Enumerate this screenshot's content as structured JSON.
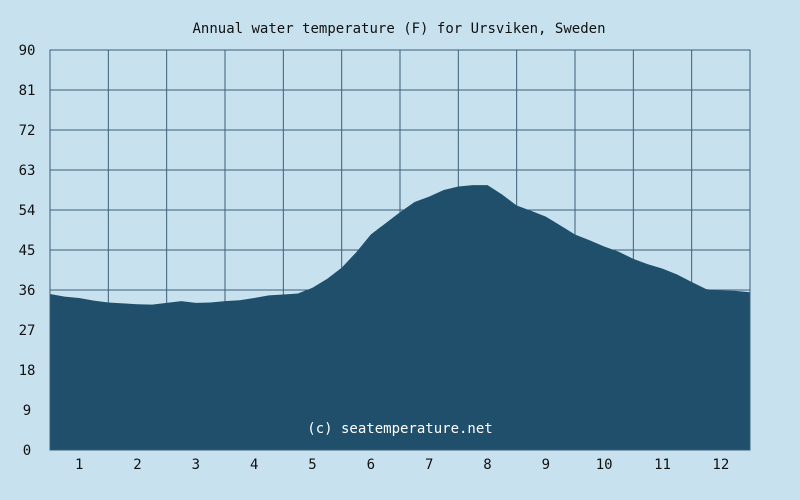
{
  "chart_data": {
    "type": "area",
    "title": "Annual water temperature (F) for Ursviken, Sweden",
    "xlabel": "",
    "ylabel": "",
    "x_tick_labels": [
      "1",
      "2",
      "3",
      "4",
      "5",
      "6",
      "7",
      "8",
      "9",
      "10",
      "11",
      "12"
    ],
    "y_tick_labels": [
      "0",
      "9",
      "18",
      "27",
      "36",
      "45",
      "54",
      "63",
      "72",
      "81",
      "90"
    ],
    "ylim": [
      0,
      90
    ],
    "xlim": [
      0.5,
      12.5
    ],
    "grid": true,
    "legend": "none",
    "watermark": "(c) seatemperature.net",
    "colors": {
      "background": "#c8e1ee",
      "plot_background": "#c8e1ee",
      "fill": "#1f4f6b",
      "grid": "#3a5f78"
    },
    "series": [
      {
        "x": [
          0.5,
          0.75,
          1.0,
          1.25,
          1.5,
          1.75,
          2.0,
          2.25,
          2.5,
          2.75,
          3.0,
          3.25,
          3.5,
          3.75,
          4.0,
          4.25,
          4.5,
          4.75,
          5.0,
          5.25,
          5.5,
          5.75,
          6.0,
          6.25,
          6.5,
          6.75,
          7.0,
          7.25,
          7.5,
          7.75,
          8.0,
          8.25,
          8.5,
          8.75,
          9.0,
          9.25,
          9.5,
          9.75,
          10.0,
          10.25,
          10.5,
          10.75,
          11.0,
          11.25,
          11.5,
          11.75,
          12.0,
          12.25,
          12.5
        ],
        "values": [
          35.1,
          34.5,
          34.2,
          33.6,
          33.2,
          33.0,
          32.8,
          32.7,
          33.1,
          33.5,
          33.1,
          33.2,
          33.5,
          33.7,
          34.2,
          34.8,
          35.0,
          35.2,
          36.5,
          38.5,
          41.0,
          44.5,
          48.5,
          51.0,
          53.5,
          55.8,
          57.0,
          58.5,
          59.3,
          59.6,
          59.6,
          57.5,
          55.0,
          53.8,
          52.5,
          50.5,
          48.5,
          47.2,
          45.8,
          44.6,
          43.0,
          41.8,
          40.8,
          39.5,
          37.8,
          36.2,
          35.9,
          35.8,
          35.5
        ]
      }
    ]
  }
}
